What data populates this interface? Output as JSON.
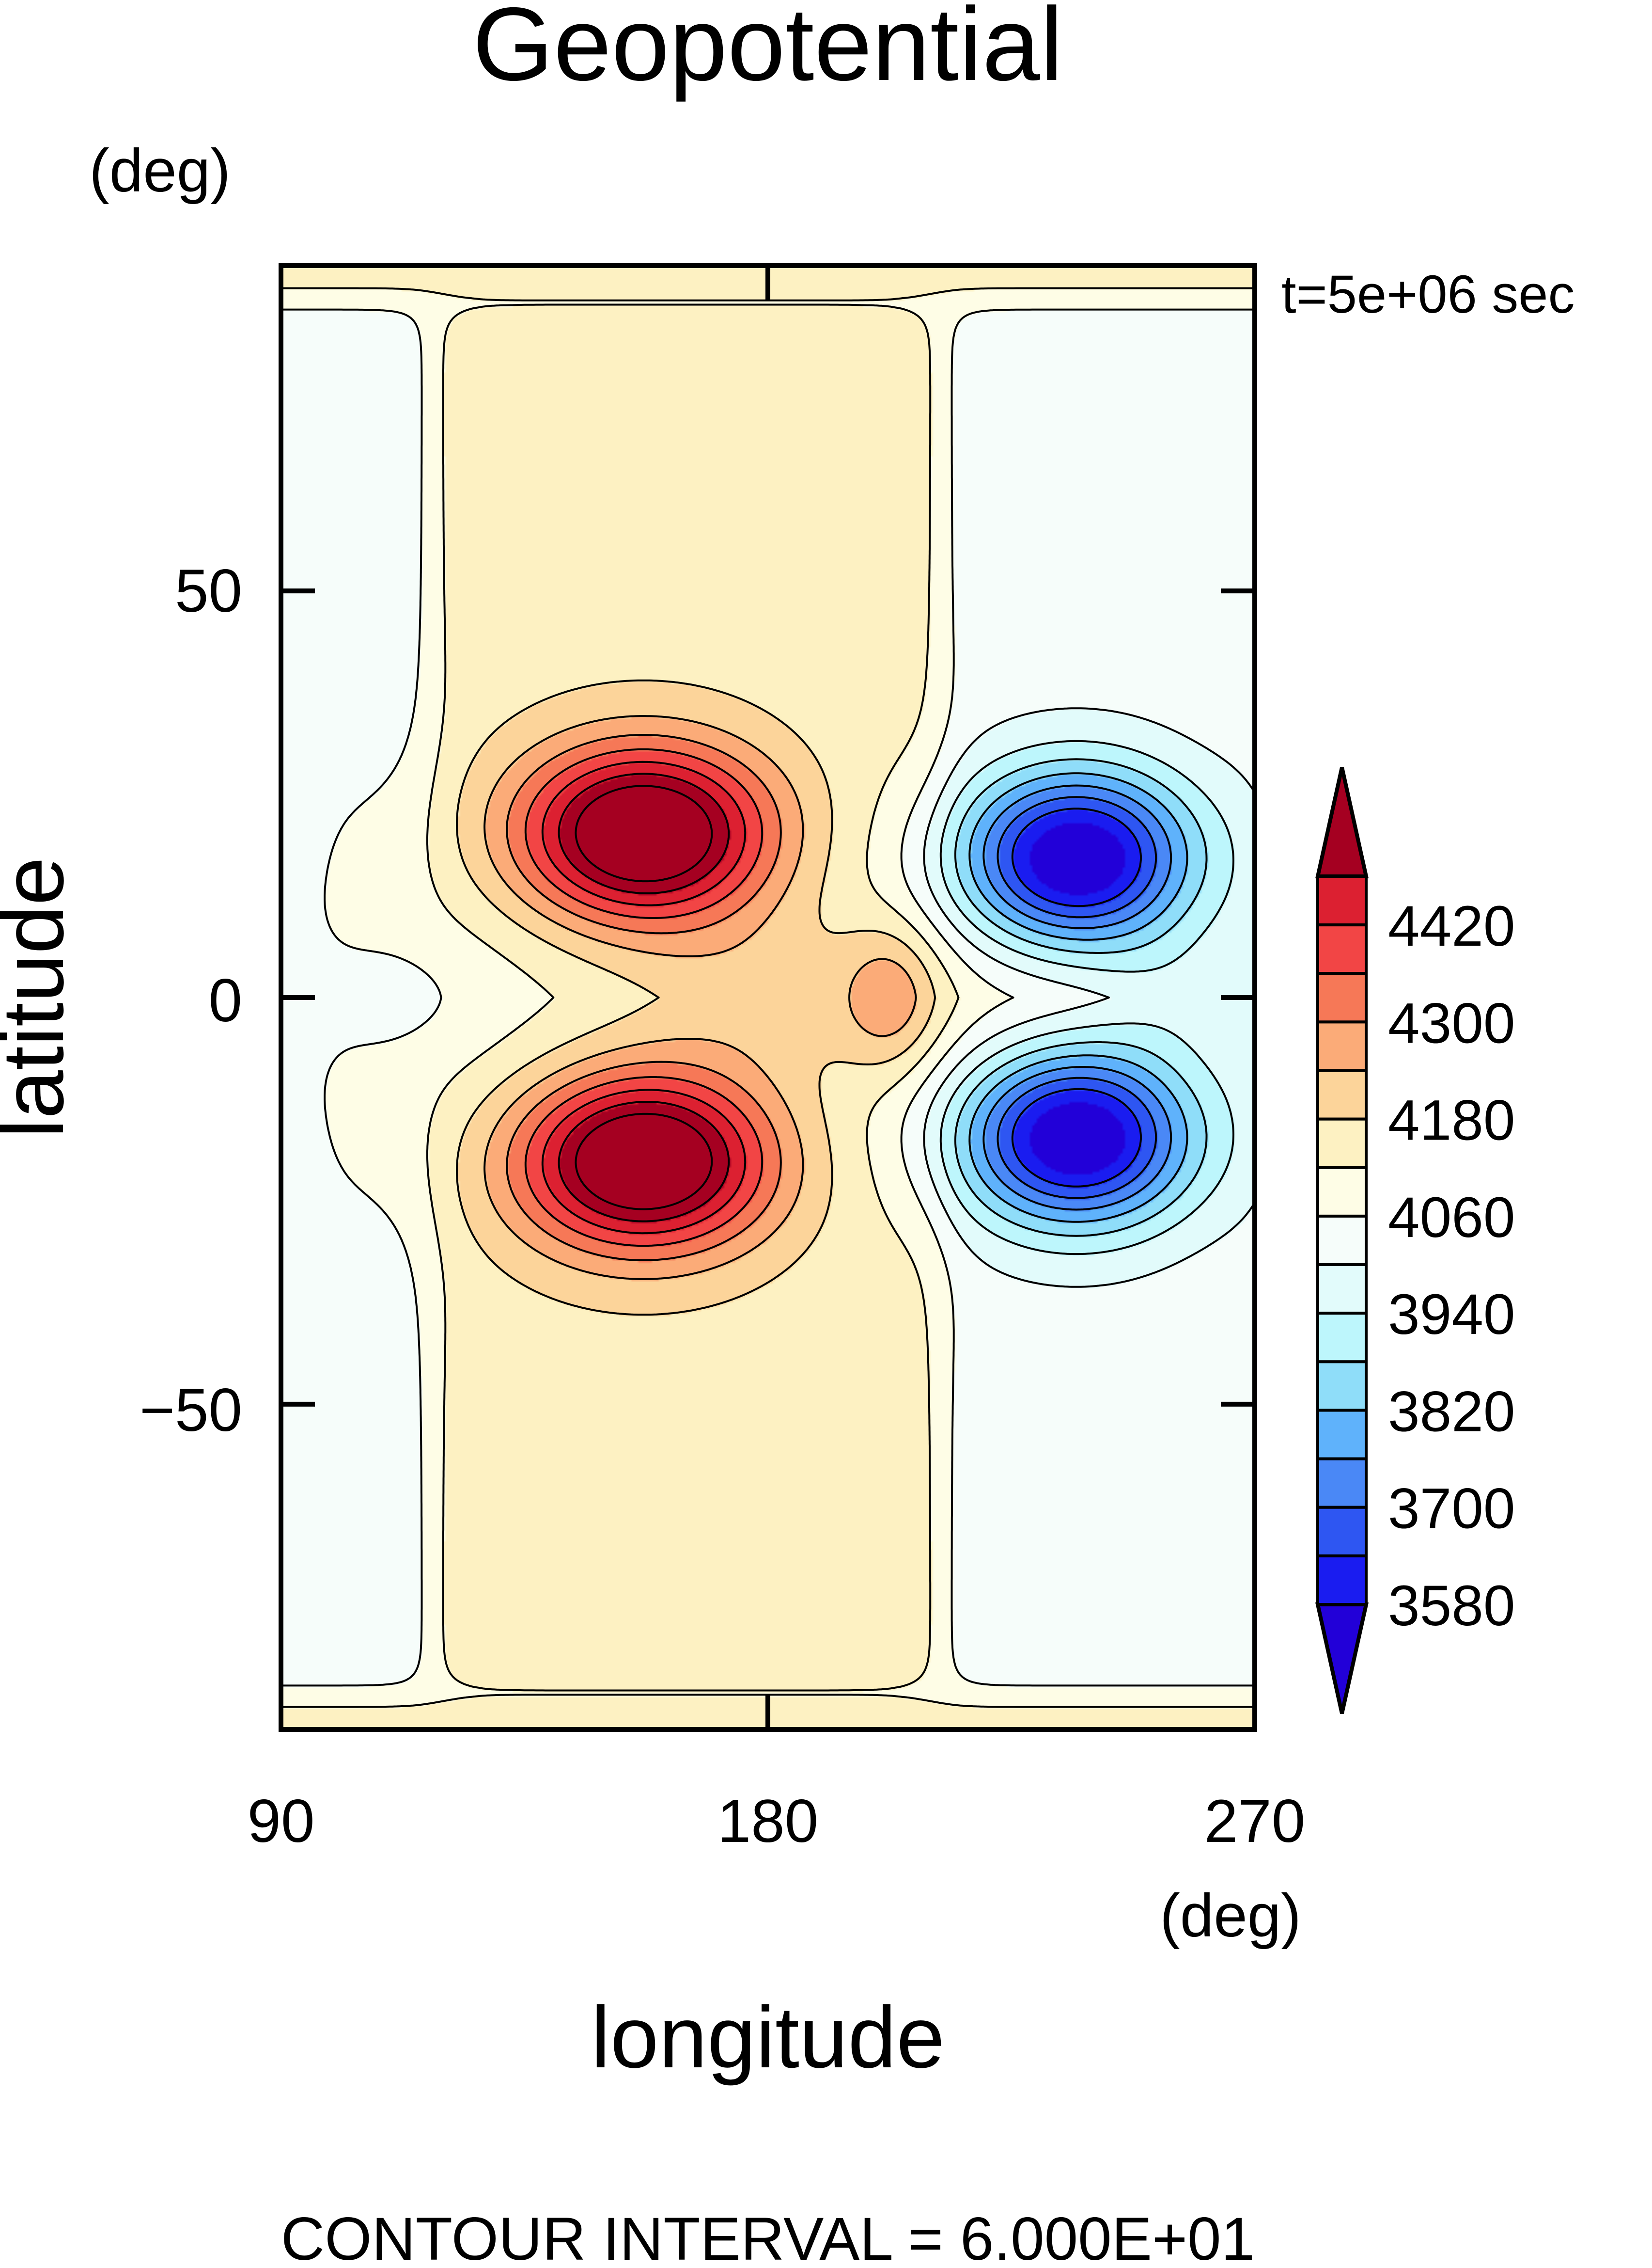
{
  "chart_data": {
    "type": "heatmap",
    "subtype": "filled-contour",
    "title": "Geopotential",
    "xlabel": "longitude",
    "ylabel": "latitude",
    "x_unit": "(deg)",
    "y_unit": "(deg)",
    "time_label": "t=5e+06 sec",
    "footer": "CONTOUR INTERVAL = 6.000E+01",
    "xlim": [
      90,
      270
    ],
    "ylim": [
      -90,
      90
    ],
    "x_ticks": [
      90,
      180,
      270
    ],
    "y_ticks": [
      50,
      0,
      -50
    ],
    "y_tick_labels": [
      "50",
      "0",
      "−50"
    ],
    "grid": false,
    "contour_interval": 60,
    "colorbar": {
      "position": "right",
      "labels": [
        "4420",
        "4300",
        "4180",
        "4060",
        "3940",
        "3820",
        "3700",
        "3580"
      ],
      "levels": [
        3520,
        3580,
        3640,
        3700,
        3760,
        3820,
        3880,
        3940,
        4000,
        4060,
        4120,
        4180,
        4240,
        4300,
        4360,
        4420,
        4480
      ],
      "colors": [
        "#2200d8",
        "#1a1cf0",
        "#2e56f2",
        "#4a88f6",
        "#5fb2fb",
        "#8fddf9",
        "#bdf6fc",
        "#e2fbfb",
        "#f6fdfa",
        "#fefde6",
        "#fdf1c2",
        "#fcd49a",
        "#fbab78",
        "#f67857",
        "#f24545",
        "#dc2031",
        "#a50021"
      ]
    },
    "features": [
      {
        "kind": "max",
        "lon": 157,
        "lat": 20,
        "value": 4480
      },
      {
        "kind": "max",
        "lon": 157,
        "lat": -20,
        "value": 4480
      },
      {
        "kind": "min",
        "lon": 237,
        "lat": 17,
        "value": 3520
      },
      {
        "kind": "min",
        "lon": 237,
        "lat": -17,
        "value": 3520
      },
      {
        "kind": "saddle",
        "lon": 202,
        "lat": 0,
        "value": 4210
      }
    ],
    "background_value": 4030
  }
}
